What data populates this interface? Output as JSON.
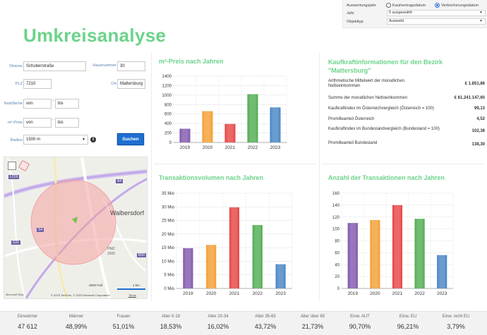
{
  "filter": {
    "auswertungsjahr_label": "Auswertungsjahr",
    "radio_kaufvertrag": "Kaufvertragsdatum",
    "radio_verbuecherung": "Verbücherungsdatum",
    "jahr_label": "Jahr",
    "jahr_value": "5 ausgewählt",
    "objekttyp_label": "Objekttyp",
    "objekttyp_value": "Auswahl"
  },
  "page_title": "Umkreisanalyse",
  "form": {
    "strasse_label": "Strasse",
    "strasse_value": "Schuberstraße",
    "hausnummer_label": "Hausnummer",
    "hausnummer_value": "30",
    "plz_label": "PLZ",
    "plz_value": "7210",
    "ort_label": "Ort",
    "ort_value": "Mattersburg",
    "nutzflaeche_label": "Nutzfläche",
    "nutzflaeche_von": "von",
    "nutzflaeche_bis": "bis",
    "m2preis_label": "m²-Preis",
    "m2preis_von": "von",
    "m2preis_bis": "bis",
    "radius_label": "Radius",
    "radius_value": "1500 m",
    "search_button": "Suchen"
  },
  "map": {
    "place_label": "Walbersdorf",
    "road_l219": "L219",
    "road_a4": "A4",
    "road_s4": "S4",
    "road_s31": "S31",
    "road_b50": "B50",
    "hmz": "HMZ",
    "hmz_code": "2000",
    "scale_ft": "2500 Fuß",
    "scale_km": "1 km",
    "copyright": "© 2023 TomTom, © 2023 Microsoft Corporation",
    "terms": "Terms",
    "logo": "Microsoft Bing"
  },
  "sections": {
    "preis": "m²-Preis nach Jahren",
    "kaufkraft": "Kaufkraftinformationen für den Bezirk \"Mattersburg\"",
    "volumen": "Transaktionsvolumen nach Jahren",
    "anzahl": "Anzahl der Transaktionen nach Jahren"
  },
  "kaufkraft_rows": [
    {
      "label": "Arithmetische Mittelwert der monatlichen Nettoeinkommen",
      "value": "€ 1.851,86"
    },
    {
      "label": "Summe der monatlichen Nettoeinkommen",
      "value": "€ 61.241.147,60"
    },
    {
      "label": "Kaufkraftindex im Österreichvergleich (Österreich = 100)",
      "value": "99,13"
    },
    {
      "label": "Promilleanteil Österreich",
      "value": "4,52"
    },
    {
      "label": "Kaufkraftindex im Bundeslandvergleich (Bundesland = 100)",
      "value": "102,38"
    },
    {
      "label": "Promilleanteil Bundesland",
      "value": "138,30"
    }
  ],
  "chart_data": [
    {
      "type": "bar",
      "id": "preis",
      "categories": [
        "2019",
        "2020",
        "2021",
        "2022",
        "2023"
      ],
      "values": [
        290,
        660,
        390,
        1020,
        740
      ],
      "yticks": [
        "0",
        "200",
        "400",
        "600",
        "800",
        "1000",
        "1200",
        "1400"
      ],
      "ylim": [
        0,
        1400
      ],
      "colors": [
        "#7b4fa8",
        "#f39a2a",
        "#e63b3b",
        "#48a84a",
        "#3f7fc1"
      ],
      "grid": true
    },
    {
      "type": "bar",
      "id": "volumen",
      "categories": [
        "2019",
        "2020",
        "2021",
        "2022",
        "2023"
      ],
      "values": [
        14.8,
        16,
        29.8,
        23.3,
        8.9
      ],
      "yticks": [
        "0 Mio",
        "5 Mio",
        "10 Mio",
        "15 Mio",
        "20 Mio",
        "25 Mio",
        "30 Mio",
        "35 Mio"
      ],
      "ylim": [
        0,
        35
      ],
      "colors": [
        "#7b4fa8",
        "#f39a2a",
        "#e63b3b",
        "#48a84a",
        "#3f7fc1"
      ],
      "grid": true
    },
    {
      "type": "bar",
      "id": "anzahl",
      "categories": [
        "2019",
        "2020",
        "2021",
        "2022",
        "2023"
      ],
      "values": [
        110,
        115,
        140,
        117,
        56
      ],
      "yticks": [
        "0",
        "20",
        "40",
        "60",
        "80",
        "100",
        "120",
        "140",
        "160"
      ],
      "ylim": [
        0,
        160
      ],
      "colors": [
        "#7b4fa8",
        "#f39a2a",
        "#e63b3b",
        "#48a84a",
        "#3f7fc1"
      ],
      "grid": true
    }
  ],
  "stats": [
    {
      "label": "Einwohner",
      "value": "47 612"
    },
    {
      "label": "Männer",
      "value": "48,99%"
    },
    {
      "label": "Frauen",
      "value": "51,01%"
    },
    {
      "label": "Alter 0-19",
      "value": "18,53%"
    },
    {
      "label": "Alter 20-34",
      "value": "16,02%"
    },
    {
      "label": "Alter 35-65",
      "value": "43,72%"
    },
    {
      "label": "Alter über 65",
      "value": "21,73%"
    },
    {
      "label": "Einw. AUT",
      "value": "90,70%"
    },
    {
      "label": "Einw. EU",
      "value": "96,21%"
    },
    {
      "label": "Einw. nicht EU",
      "value": "3,79%"
    }
  ]
}
